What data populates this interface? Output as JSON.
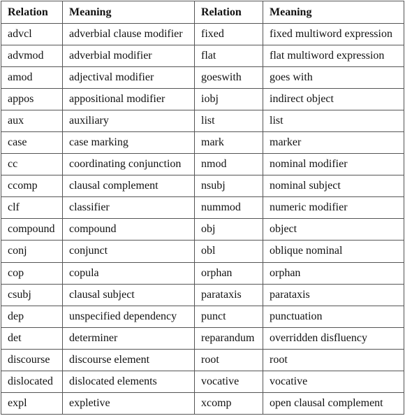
{
  "table": {
    "headers": [
      "Relation",
      "Meaning",
      "Relation",
      "Meaning"
    ],
    "rows": [
      [
        "advcl",
        "adverbial clause modifier",
        "fixed",
        "fixed multiword expression"
      ],
      [
        "advmod",
        "adverbial modifier",
        "flat",
        "flat multiword expression"
      ],
      [
        "amod",
        "adjectival modifier",
        "goeswith",
        "goes with"
      ],
      [
        "appos",
        "appositional modifier",
        "iobj",
        "indirect object"
      ],
      [
        "aux",
        "auxiliary",
        "list",
        "list"
      ],
      [
        "case",
        "case marking",
        "mark",
        "marker"
      ],
      [
        "cc",
        "coordinating conjunction",
        "nmod",
        "nominal modifier"
      ],
      [
        "ccomp",
        "clausal complement",
        "nsubj",
        "nominal subject"
      ],
      [
        "clf",
        "classifier",
        "nummod",
        "numeric modifier"
      ],
      [
        "compound",
        "compound",
        "obj",
        "object"
      ],
      [
        "conj",
        "conjunct",
        "obl",
        "oblique nominal"
      ],
      [
        "cop",
        "copula",
        "orphan",
        "orphan"
      ],
      [
        "csubj",
        "clausal subject",
        "parataxis",
        "parataxis"
      ],
      [
        "dep",
        "unspecified dependency",
        "punct",
        "punctuation"
      ],
      [
        "det",
        "determiner",
        "reparandum",
        "overridden disfluency"
      ],
      [
        "discourse",
        "discourse element",
        "root",
        "root"
      ],
      [
        "dislocated",
        "dislocated elements",
        "vocative",
        "vocative"
      ],
      [
        "expl",
        "expletive",
        "xcomp",
        "open clausal complement"
      ]
    ]
  }
}
